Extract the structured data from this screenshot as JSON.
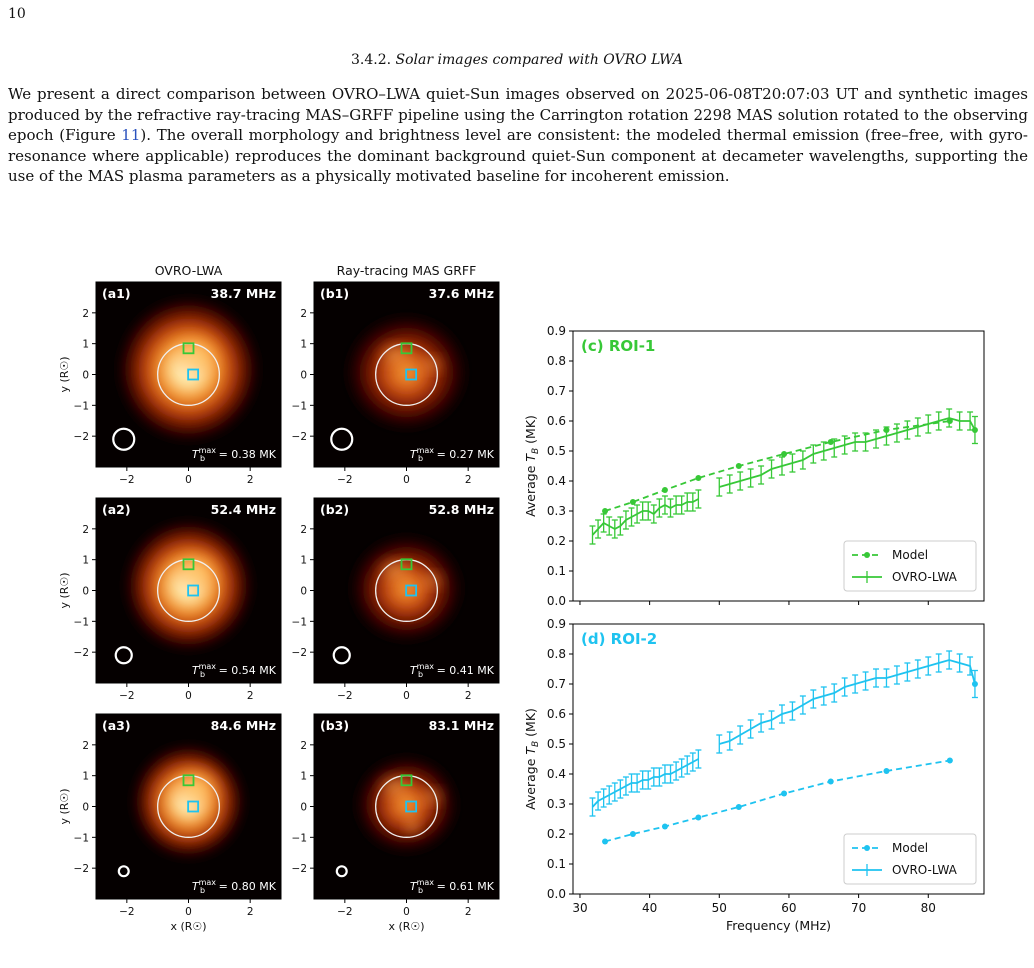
{
  "page_number": "10",
  "section": {
    "number": "3.4.2.",
    "title": "Solar images compared with OVRO LWA"
  },
  "paragraph": {
    "before_ref": "We present a direct comparison between OVRO–LWA quiet-Sun images observed on 2025-06-08T20:07:03 UT and synthetic images produced by the refractive ray-tracing MAS–GRFF pipeline using the Carrington rotation 2298 MAS solution rotated to the observing epoch (Figure ",
    "ref": "11",
    "after_ref": "). The overall morphology and brightness level are consistent: the modeled thermal emission (free–free, with gyro-resonance where applicable) reproduces the dominant background quiet-Sun component at decameter wavelengths, supporting the use of the MAS plasma parameters as a physically motivated baseline for incoherent emission."
  },
  "figure": {
    "col_titles": [
      "OVRO-LWA",
      "Ray-tracing MAS GRFF"
    ],
    "image_axis": {
      "xlabel": "x (R☉)",
      "ylabel": "y (R☉)",
      "ticks": [
        "−2",
        "−1",
        "0",
        "1",
        "2"
      ],
      "xticks": [
        "−2",
        "0",
        "2"
      ]
    },
    "panels": [
      {
        "id": "(a1)",
        "freq": "38.7 MHz",
        "tb": "= 0.38 MK",
        "beam_r": 0.34,
        "kind": "obs",
        "bright": 1.0
      },
      {
        "id": "(b1)",
        "freq": "37.6 MHz",
        "tb": "= 0.27 MK",
        "beam_r": 0.34,
        "kind": "model",
        "bright": 0.8
      },
      {
        "id": "(a2)",
        "freq": "52.4 MHz",
        "tb": "= 0.54 MK",
        "beam_r": 0.26,
        "kind": "obs",
        "bright": 1.0
      },
      {
        "id": "(b2)",
        "freq": "52.8 MHz",
        "tb": "= 0.41 MK",
        "beam_r": 0.26,
        "kind": "model",
        "bright": 0.85
      },
      {
        "id": "(a3)",
        "freq": "84.6 MHz",
        "tb": "= 0.80 MK",
        "beam_r": 0.16,
        "kind": "obs",
        "bright": 1.0
      },
      {
        "id": "(b3)",
        "freq": "83.1 MHz",
        "tb": "= 0.61 MK",
        "beam_r": 0.16,
        "kind": "model",
        "bright": 0.9
      }
    ],
    "tb_label": "T",
    "roi_colors": {
      "roi1": "#37c837",
      "roi2": "#1ec3f0"
    }
  },
  "chart_data": [
    {
      "type": "line",
      "title": "(c) ROI-1",
      "xlabel": "",
      "ylabel": "Average T_B (MK)",
      "xlim": [
        29,
        88
      ],
      "ylim": [
        0,
        0.9
      ],
      "yticks": [
        "0.0",
        "0.1",
        "0.2",
        "0.3",
        "0.4",
        "0.5",
        "0.6",
        "0.7",
        "0.8",
        "0.9"
      ],
      "color": "#37c837",
      "legend_position": "lower right",
      "series": [
        {
          "name": "Model",
          "x": [
            33.6,
            37.6,
            42.2,
            47.0,
            52.8,
            59.3,
            66.0,
            74.0,
            83.1
          ],
          "y": [
            0.3,
            0.33,
            0.37,
            0.41,
            0.45,
            0.49,
            0.53,
            0.57,
            0.6
          ]
        },
        {
          "name": "OVRO-LWA",
          "x": [
            31.8,
            32.6,
            33.4,
            34.2,
            35.0,
            35.8,
            36.6,
            37.4,
            38.2,
            39.0,
            39.8,
            40.6,
            41.4,
            42.2,
            43.0,
            43.8,
            44.6,
            45.4,
            46.2,
            47.0,
            50.0,
            51.5,
            53.0,
            54.5,
            56.0,
            57.5,
            59.0,
            60.5,
            62.0,
            63.5,
            65.0,
            66.5,
            68.0,
            69.5,
            71.0,
            72.5,
            74.0,
            75.5,
            77.0,
            78.5,
            80.0,
            81.5,
            83.0,
            84.5,
            86.0,
            86.7
          ],
          "y": [
            0.22,
            0.24,
            0.26,
            0.25,
            0.24,
            0.25,
            0.27,
            0.28,
            0.29,
            0.3,
            0.3,
            0.29,
            0.31,
            0.32,
            0.31,
            0.32,
            0.32,
            0.33,
            0.33,
            0.34,
            0.38,
            0.39,
            0.4,
            0.41,
            0.42,
            0.44,
            0.45,
            0.46,
            0.47,
            0.49,
            0.5,
            0.51,
            0.52,
            0.53,
            0.53,
            0.54,
            0.55,
            0.56,
            0.57,
            0.58,
            0.59,
            0.6,
            0.61,
            0.6,
            0.6,
            0.57
          ],
          "err": 0.03
        }
      ]
    },
    {
      "type": "line",
      "title": "(d) ROI-2",
      "xlabel": "Frequency (MHz)",
      "ylabel": "Average T_B (MK)",
      "xlim": [
        29,
        88
      ],
      "ylim": [
        0,
        0.9
      ],
      "xticks": [
        30,
        40,
        50,
        60,
        70,
        80
      ],
      "yticks": [
        "0.0",
        "0.1",
        "0.2",
        "0.3",
        "0.4",
        "0.5",
        "0.6",
        "0.7",
        "0.8",
        "0.9"
      ],
      "color": "#1ec3f0",
      "legend_position": "lower right",
      "series": [
        {
          "name": "Model",
          "x": [
            33.6,
            37.6,
            42.2,
            47.0,
            52.8,
            59.3,
            66.0,
            74.0,
            83.1
          ],
          "y": [
            0.175,
            0.2,
            0.225,
            0.255,
            0.29,
            0.335,
            0.375,
            0.41,
            0.445
          ]
        },
        {
          "name": "OVRO-LWA",
          "x": [
            31.8,
            32.6,
            33.4,
            34.2,
            35.0,
            35.8,
            36.6,
            37.4,
            38.2,
            39.0,
            39.8,
            40.6,
            41.4,
            42.2,
            43.0,
            43.8,
            44.6,
            45.4,
            46.2,
            47.0,
            50.0,
            51.5,
            53.0,
            54.5,
            56.0,
            57.5,
            59.0,
            60.5,
            62.0,
            63.5,
            65.0,
            66.5,
            68.0,
            69.5,
            71.0,
            72.5,
            74.0,
            75.5,
            77.0,
            78.5,
            80.0,
            81.5,
            83.0,
            84.5,
            86.0,
            86.7
          ],
          "y": [
            0.29,
            0.31,
            0.32,
            0.33,
            0.34,
            0.35,
            0.36,
            0.37,
            0.37,
            0.38,
            0.38,
            0.39,
            0.39,
            0.4,
            0.4,
            0.41,
            0.42,
            0.43,
            0.44,
            0.45,
            0.5,
            0.51,
            0.53,
            0.55,
            0.57,
            0.58,
            0.6,
            0.61,
            0.63,
            0.65,
            0.66,
            0.67,
            0.69,
            0.7,
            0.71,
            0.72,
            0.72,
            0.73,
            0.74,
            0.75,
            0.76,
            0.77,
            0.78,
            0.77,
            0.76,
            0.7
          ],
          "err": 0.03
        }
      ]
    }
  ]
}
